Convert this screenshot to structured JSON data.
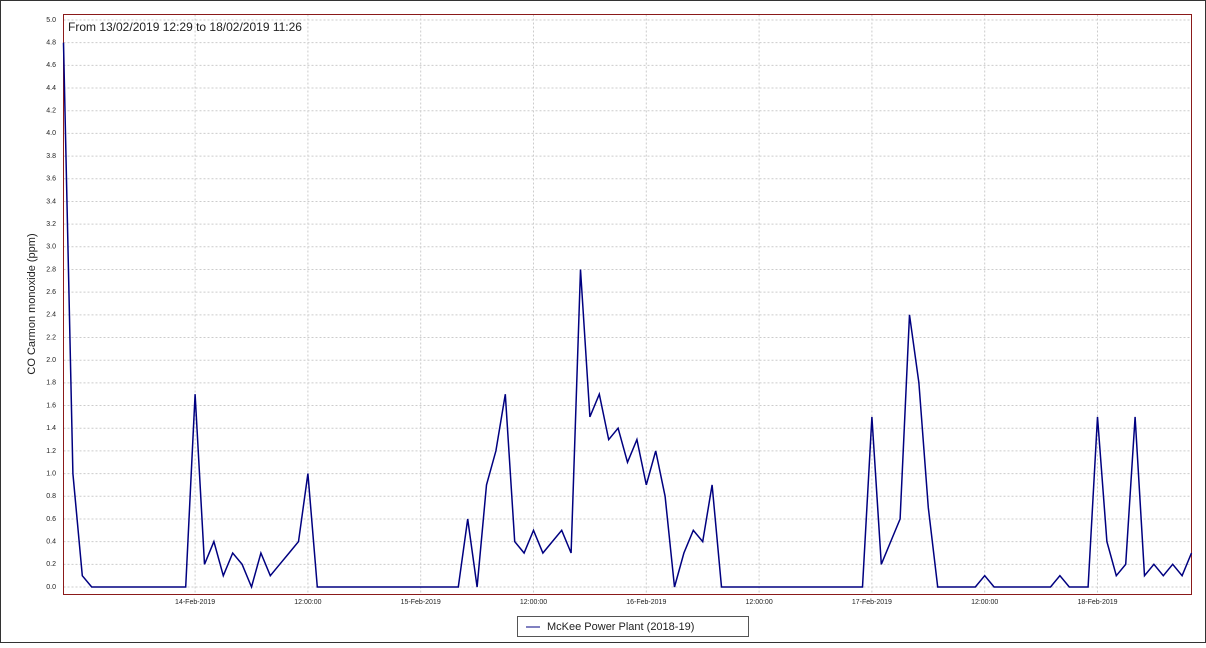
{
  "chart_data": {
    "type": "line",
    "title": "From 13/02/2019 12:29 to 18/02/2019 11:26",
    "y_label": "CO Carmon monoxide (ppm)",
    "legend": "McKee Power Plant (2018-19)",
    "color": "#000080",
    "grid": true,
    "xlim": [
      "2019-02-13 10:00",
      "2019-02-18 10:00"
    ],
    "xticks": [
      {
        "value": "2019-02-14 00:00",
        "label": "14-Feb-2019"
      },
      {
        "value": "2019-02-14 12:00",
        "label": "12:00:00"
      },
      {
        "value": "2019-02-15 00:00",
        "label": "15-Feb-2019"
      },
      {
        "value": "2019-02-15 12:00",
        "label": "12:00:00"
      },
      {
        "value": "2019-02-16 00:00",
        "label": "16-Feb-2019"
      },
      {
        "value": "2019-02-16 12:00",
        "label": "12:00:00"
      },
      {
        "value": "2019-02-17 00:00",
        "label": "17-Feb-2019"
      },
      {
        "value": "2019-02-17 12:00",
        "label": "12:00:00"
      },
      {
        "value": "2019-02-18 00:00",
        "label": "18-Feb-2019"
      }
    ],
    "ylim": [
      0,
      5
    ],
    "yticks": [
      {
        "value": 0,
        "label": "0.0"
      },
      0.2,
      0.4,
      0.6,
      0.8,
      {
        "value": 1,
        "label": "1.0"
      },
      1.2,
      1.4,
      1.6,
      1.8,
      {
        "value": 2,
        "label": "2.0"
      },
      2.2,
      2.4,
      2.6,
      2.8,
      {
        "value": 3,
        "label": "3.0"
      },
      3.2,
      3.4,
      3.6,
      3.8,
      {
        "value": 4,
        "label": "4.0"
      },
      4.2,
      4.4,
      4.6,
      4.8,
      {
        "value": 5,
        "label": "5.0"
      }
    ],
    "x": [
      "2019-02-13 10:00",
      "2019-02-13 11:00",
      "2019-02-13 12:00",
      "2019-02-13 13:00",
      "2019-02-13 14:00",
      "2019-02-13 15:00",
      "2019-02-13 16:00",
      "2019-02-13 17:00",
      "2019-02-13 18:00",
      "2019-02-13 19:00",
      "2019-02-13 20:00",
      "2019-02-13 21:00",
      "2019-02-13 22:00",
      "2019-02-13 23:00",
      "2019-02-14 00:00",
      "2019-02-14 01:00",
      "2019-02-14 02:00",
      "2019-02-14 03:00",
      "2019-02-14 04:00",
      "2019-02-14 05:00",
      "2019-02-14 06:00",
      "2019-02-14 07:00",
      "2019-02-14 08:00",
      "2019-02-14 09:00",
      "2019-02-14 10:00",
      "2019-02-14 11:00",
      "2019-02-14 12:00",
      "2019-02-14 13:00",
      "2019-02-14 14:00",
      "2019-02-14 15:00",
      "2019-02-14 16:00",
      "2019-02-14 17:00",
      "2019-02-14 18:00",
      "2019-02-14 19:00",
      "2019-02-14 20:00",
      "2019-02-14 21:00",
      "2019-02-14 22:00",
      "2019-02-14 23:00",
      "2019-02-15 00:00",
      "2019-02-15 01:00",
      "2019-02-15 02:00",
      "2019-02-15 03:00",
      "2019-02-15 04:00",
      "2019-02-15 05:00",
      "2019-02-15 06:00",
      "2019-02-15 07:00",
      "2019-02-15 08:00",
      "2019-02-15 09:00",
      "2019-02-15 10:00",
      "2019-02-15 11:00",
      "2019-02-15 12:00",
      "2019-02-15 13:00",
      "2019-02-15 14:00",
      "2019-02-15 15:00",
      "2019-02-15 16:00",
      "2019-02-15 17:00",
      "2019-02-15 18:00",
      "2019-02-15 19:00",
      "2019-02-15 20:00",
      "2019-02-15 21:00",
      "2019-02-15 22:00",
      "2019-02-15 23:00",
      "2019-02-16 00:00",
      "2019-02-16 01:00",
      "2019-02-16 02:00",
      "2019-02-16 03:00",
      "2019-02-16 04:00",
      "2019-02-16 05:00",
      "2019-02-16 06:00",
      "2019-02-16 07:00",
      "2019-02-16 08:00",
      "2019-02-16 09:00",
      "2019-02-16 10:00",
      "2019-02-16 11:00",
      "2019-02-16 12:00",
      "2019-02-16 13:00",
      "2019-02-16 14:00",
      "2019-02-16 15:00",
      "2019-02-16 16:00",
      "2019-02-16 17:00",
      "2019-02-16 18:00",
      "2019-02-16 19:00",
      "2019-02-16 20:00",
      "2019-02-16 21:00",
      "2019-02-16 22:00",
      "2019-02-16 23:00",
      "2019-02-17 00:00",
      "2019-02-17 01:00",
      "2019-02-17 02:00",
      "2019-02-17 03:00",
      "2019-02-17 04:00",
      "2019-02-17 05:00",
      "2019-02-17 06:00",
      "2019-02-17 07:00",
      "2019-02-17 08:00",
      "2019-02-17 09:00",
      "2019-02-17 10:00",
      "2019-02-17 11:00",
      "2019-02-17 12:00",
      "2019-02-17 13:00",
      "2019-02-17 14:00",
      "2019-02-17 15:00",
      "2019-02-17 16:00",
      "2019-02-17 17:00",
      "2019-02-17 18:00",
      "2019-02-17 19:00",
      "2019-02-17 20:00",
      "2019-02-17 21:00",
      "2019-02-17 22:00",
      "2019-02-17 23:00",
      "2019-02-18 00:00",
      "2019-02-18 01:00",
      "2019-02-18 02:00",
      "2019-02-18 03:00",
      "2019-02-18 04:00",
      "2019-02-18 05:00",
      "2019-02-18 06:00",
      "2019-02-18 07:00",
      "2019-02-18 08:00",
      "2019-02-18 09:00",
      "2019-02-18 10:00"
    ],
    "values": [
      4.8,
      1.0,
      0.1,
      0,
      0,
      0,
      0,
      0,
      0,
      0,
      0,
      0,
      0,
      0,
      1.7,
      0.2,
      0.4,
      0.1,
      0.3,
      0.2,
      0,
      0.3,
      0.1,
      0.2,
      0.3,
      0.4,
      1.0,
      0,
      0,
      0,
      0,
      0,
      0,
      0,
      0,
      0,
      0,
      0,
      0,
      0,
      0,
      0,
      0,
      0.6,
      0,
      0.9,
      1.2,
      1.7,
      0.4,
      0.3,
      0.5,
      0.3,
      0.4,
      0.5,
      0.3,
      2.8,
      1.5,
      1.7,
      1.3,
      1.4,
      1.1,
      1.3,
      0.9,
      1.2,
      0.8,
      0,
      0.3,
      0.5,
      0.4,
      0.9,
      0,
      0,
      0,
      0,
      0,
      0,
      0,
      0,
      0,
      0,
      0,
      0,
      0,
      0,
      0,
      0,
      1.5,
      0.2,
      0.4,
      0.6,
      2.4,
      1.8,
      0.7,
      0,
      0,
      0,
      0,
      0,
      0.1,
      0,
      0,
      0,
      0,
      0,
      0,
      0,
      0.1,
      0,
      0,
      0,
      1.5,
      0.4,
      0.1,
      0.2,
      1.5,
      0.1,
      0.2,
      0.1,
      0.2,
      0.1,
      0.3
    ]
  }
}
